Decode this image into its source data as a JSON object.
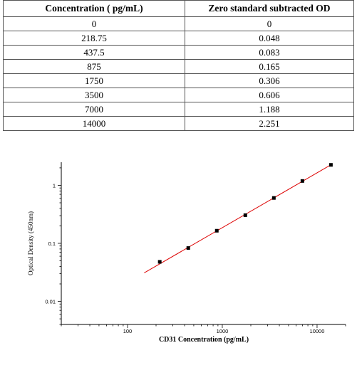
{
  "table": {
    "headers": [
      "Concentration ( pg/mL)",
      "Zero standard subtracted OD"
    ],
    "rows": [
      [
        "0",
        "0"
      ],
      [
        "218.75",
        "0.048"
      ],
      [
        "437.5",
        "0.083"
      ],
      [
        "875",
        "0.165"
      ],
      [
        "1750",
        "0.306"
      ],
      [
        "3500",
        "0.606"
      ],
      [
        "7000",
        "1.188"
      ],
      [
        "14000",
        "2.251"
      ]
    ]
  },
  "chart_data": {
    "type": "scatter",
    "xlabel": "CD31 Concentration (pg/mL)",
    "ylabel": "Optical Density (450nm)",
    "x_scale": "log",
    "y_scale": "log",
    "xlim": [
      20,
      20000
    ],
    "ylim": [
      0.004,
      2.5
    ],
    "x_ticks": [
      100,
      1000,
      10000
    ],
    "x_tick_labels": [
      "100",
      "1000",
      "10000"
    ],
    "y_ticks": [
      0.01,
      0.1,
      1
    ],
    "y_tick_labels": [
      "0.01",
      "0.1",
      "1"
    ],
    "grid": false,
    "points": [
      {
        "x": 218.75,
        "y": 0.048
      },
      {
        "x": 437.5,
        "y": 0.083
      },
      {
        "x": 875,
        "y": 0.165
      },
      {
        "x": 1750,
        "y": 0.306
      },
      {
        "x": 3500,
        "y": 0.606
      },
      {
        "x": 7000,
        "y": 1.188
      },
      {
        "x": 14000,
        "y": 2.251
      }
    ],
    "fit_line": {
      "x_start": 150,
      "y_start": 0.031,
      "x_end": 14500,
      "y_end": 2.33
    },
    "marker_color": "#000000",
    "fit_color": "#dd0000"
  }
}
